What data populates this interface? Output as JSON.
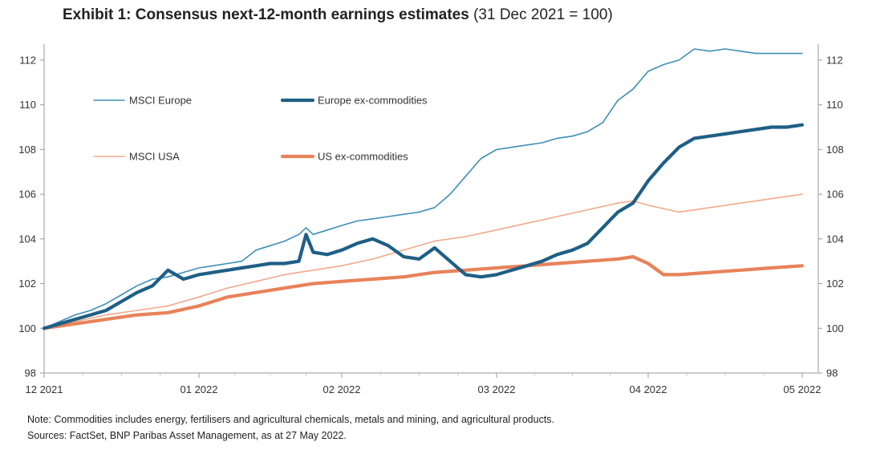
{
  "title": {
    "bold": "Exhibit 1:  Consensus next-12-month earnings estimates",
    "normal": " (31 Dec 2021 = 100)"
  },
  "notes": {
    "note": "Note: Commodities includes energy, fertilisers and agricultural chemicals, metals and mining, and agricultural products.",
    "sources": "Sources: FactSet, BNP Paribas Asset Management, as at 27 May 2022."
  },
  "chart_data": {
    "type": "line",
    "title": "Exhibit 1:  Consensus next-12-month earnings estimates (31 Dec 2021 = 100)",
    "x_tick_labels": [
      "12 2021",
      "01 2022",
      "02 2022",
      "03 2022",
      "04 2022",
      "05 2022"
    ],
    "x_ticks": [
      0,
      1,
      2,
      3,
      4,
      5
    ],
    "xlim": [
      0,
      5
    ],
    "ylim": [
      98,
      112.5
    ],
    "y_ticks": [
      98,
      100,
      102,
      104,
      106,
      108,
      110,
      112
    ],
    "secondary_y_axis": true,
    "grid": false,
    "legend_placement": "top-left, inside plot",
    "series": [
      {
        "name": "MSCI Europe",
        "color": "#3e8fb6",
        "width": 1.6,
        "x": [
          0,
          0.1,
          0.2,
          0.3,
          0.4,
          0.5,
          0.6,
          0.7,
          0.8,
          0.9,
          1.0,
          1.1,
          1.2,
          1.3,
          1.4,
          1.5,
          1.6,
          1.7,
          1.75,
          1.8,
          1.9,
          2.0,
          2.1,
          2.2,
          2.3,
          2.4,
          2.5,
          2.6,
          2.7,
          2.8,
          2.9,
          3.0,
          3.1,
          3.2,
          3.3,
          3.4,
          3.5,
          3.6,
          3.7,
          3.8,
          3.9,
          4.0,
          4.1,
          4.2,
          4.3,
          4.4,
          4.5,
          4.6,
          4.7,
          4.8,
          4.9,
          5.0
        ],
        "values": [
          100,
          100.3,
          100.6,
          100.8,
          101.1,
          101.5,
          101.9,
          102.2,
          102.3,
          102.5,
          102.7,
          102.8,
          102.9,
          103.0,
          103.5,
          103.7,
          103.9,
          104.2,
          104.5,
          104.2,
          104.4,
          104.6,
          104.8,
          104.9,
          105.0,
          105.1,
          105.2,
          105.4,
          106.0,
          106.8,
          107.6,
          108.0,
          108.1,
          108.2,
          108.3,
          108.5,
          108.6,
          108.8,
          109.2,
          110.2,
          110.7,
          111.5,
          111.8,
          112.0,
          112.5,
          112.4,
          112.5,
          112.4,
          112.3,
          112.3,
          112.3,
          112.3
        ]
      },
      {
        "name": "Europe ex-commodities",
        "color": "#1f5f86",
        "width": 4.2,
        "x": [
          0,
          0.1,
          0.2,
          0.3,
          0.4,
          0.5,
          0.6,
          0.7,
          0.8,
          0.9,
          1.0,
          1.1,
          1.2,
          1.3,
          1.4,
          1.5,
          1.6,
          1.7,
          1.75,
          1.8,
          1.9,
          2.0,
          2.1,
          2.2,
          2.3,
          2.4,
          2.5,
          2.6,
          2.7,
          2.8,
          2.9,
          3.0,
          3.1,
          3.2,
          3.3,
          3.4,
          3.5,
          3.6,
          3.7,
          3.8,
          3.9,
          4.0,
          4.1,
          4.2,
          4.3,
          4.4,
          4.5,
          4.6,
          4.7,
          4.8,
          4.9,
          5.0
        ],
        "values": [
          100,
          100.2,
          100.4,
          100.6,
          100.8,
          101.2,
          101.6,
          101.9,
          102.6,
          102.2,
          102.4,
          102.5,
          102.6,
          102.7,
          102.8,
          102.9,
          102.9,
          103.0,
          104.2,
          103.4,
          103.3,
          103.5,
          103.8,
          104.0,
          103.7,
          103.2,
          103.1,
          103.6,
          103.0,
          102.4,
          102.3,
          102.4,
          102.6,
          102.8,
          103.0,
          103.3,
          103.5,
          103.8,
          104.5,
          105.2,
          105.6,
          106.6,
          107.4,
          108.1,
          108.5,
          108.6,
          108.7,
          108.8,
          108.9,
          109.0,
          109.0,
          109.1
        ]
      },
      {
        "name": "MSCI USA",
        "color": "#f2a98b",
        "width": 1.6,
        "x": [
          0,
          0.2,
          0.4,
          0.6,
          0.8,
          1.0,
          1.2,
          1.4,
          1.6,
          1.8,
          2.0,
          2.2,
          2.4,
          2.6,
          2.8,
          3.0,
          3.2,
          3.4,
          3.6,
          3.8,
          3.9,
          4.0,
          4.2,
          4.4,
          4.6,
          4.8,
          5.0
        ],
        "values": [
          100,
          100.3,
          100.6,
          100.8,
          101.0,
          101.4,
          101.8,
          102.1,
          102.4,
          102.6,
          102.8,
          103.1,
          103.5,
          103.9,
          104.1,
          104.4,
          104.7,
          105.0,
          105.3,
          105.6,
          105.7,
          105.5,
          105.2,
          105.4,
          105.6,
          105.8,
          106.0
        ]
      },
      {
        "name": "US ex-commodities",
        "color": "#e8825a",
        "width": 4.2,
        "x": [
          0,
          0.2,
          0.4,
          0.6,
          0.8,
          1.0,
          1.2,
          1.4,
          1.6,
          1.8,
          2.0,
          2.2,
          2.4,
          2.6,
          2.8,
          3.0,
          3.2,
          3.4,
          3.6,
          3.8,
          3.9,
          4.0,
          4.1,
          4.2,
          4.4,
          4.6,
          4.8,
          5.0
        ],
        "values": [
          100,
          100.2,
          100.4,
          100.6,
          100.7,
          101.0,
          101.4,
          101.6,
          101.8,
          102.0,
          102.1,
          102.2,
          102.3,
          102.5,
          102.6,
          102.7,
          102.8,
          102.9,
          103.0,
          103.1,
          103.2,
          102.9,
          102.4,
          102.4,
          102.5,
          102.6,
          102.7,
          102.8
        ]
      }
    ]
  }
}
